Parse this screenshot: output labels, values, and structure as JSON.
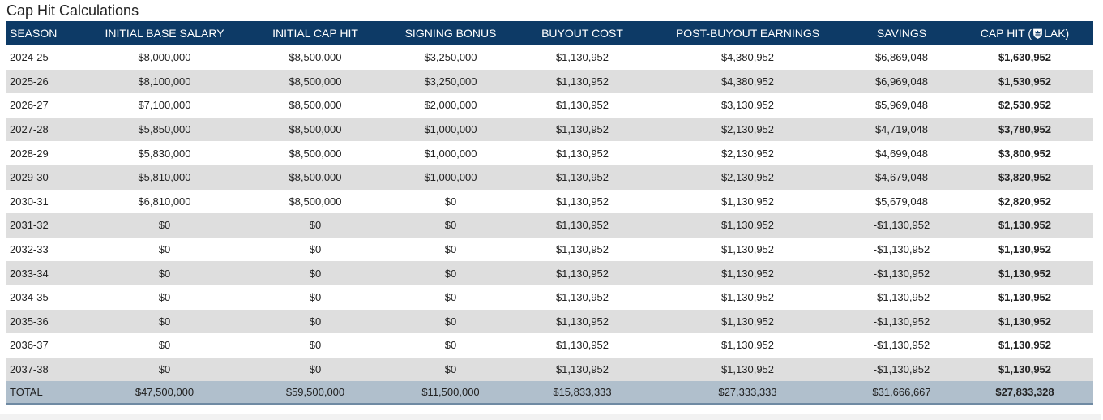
{
  "title": "Cap Hit Calculations",
  "headers": {
    "season": "SEASON",
    "initial_base_salary": "INITIAL BASE SALARY",
    "initial_cap_hit": "INITIAL CAP HIT",
    "signing_bonus": "SIGNING BONUS",
    "buyout_cost": "BUYOUT COST",
    "post_buyout_earnings": "POST-BUYOUT EARNINGS",
    "savings": "SAVINGS",
    "cap_hit_prefix": "CAP HIT (",
    "cap_hit_team": "LAK)",
    "cap_hit_logo_icon": "team-logo-icon"
  },
  "rows": [
    [
      "2024-25",
      "$8,000,000",
      "$8,500,000",
      "$3,250,000",
      "$1,130,952",
      "$4,380,952",
      "$6,869,048",
      "$1,630,952"
    ],
    [
      "2025-26",
      "$8,100,000",
      "$8,500,000",
      "$3,250,000",
      "$1,130,952",
      "$4,380,952",
      "$6,969,048",
      "$1,530,952"
    ],
    [
      "2026-27",
      "$7,100,000",
      "$8,500,000",
      "$2,000,000",
      "$1,130,952",
      "$3,130,952",
      "$5,969,048",
      "$2,530,952"
    ],
    [
      "2027-28",
      "$5,850,000",
      "$8,500,000",
      "$1,000,000",
      "$1,130,952",
      "$2,130,952",
      "$4,719,048",
      "$3,780,952"
    ],
    [
      "2028-29",
      "$5,830,000",
      "$8,500,000",
      "$1,000,000",
      "$1,130,952",
      "$2,130,952",
      "$4,699,048",
      "$3,800,952"
    ],
    [
      "2029-30",
      "$5,810,000",
      "$8,500,000",
      "$1,000,000",
      "$1,130,952",
      "$2,130,952",
      "$4,679,048",
      "$3,820,952"
    ],
    [
      "2030-31",
      "$6,810,000",
      "$8,500,000",
      "$0",
      "$1,130,952",
      "$1,130,952",
      "$5,679,048",
      "$2,820,952"
    ],
    [
      "2031-32",
      "$0",
      "$0",
      "$0",
      "$1,130,952",
      "$1,130,952",
      "-$1,130,952",
      "$1,130,952"
    ],
    [
      "2032-33",
      "$0",
      "$0",
      "$0",
      "$1,130,952",
      "$1,130,952",
      "-$1,130,952",
      "$1,130,952"
    ],
    [
      "2033-34",
      "$0",
      "$0",
      "$0",
      "$1,130,952",
      "$1,130,952",
      "-$1,130,952",
      "$1,130,952"
    ],
    [
      "2034-35",
      "$0",
      "$0",
      "$0",
      "$1,130,952",
      "$1,130,952",
      "-$1,130,952",
      "$1,130,952"
    ],
    [
      "2035-36",
      "$0",
      "$0",
      "$0",
      "$1,130,952",
      "$1,130,952",
      "-$1,130,952",
      "$1,130,952"
    ],
    [
      "2036-37",
      "$0",
      "$0",
      "$0",
      "$1,130,952",
      "$1,130,952",
      "-$1,130,952",
      "$1,130,952"
    ],
    [
      "2037-38",
      "$0",
      "$0",
      "$0",
      "$1,130,952",
      "$1,130,952",
      "-$1,130,952",
      "$1,130,952"
    ]
  ],
  "total": [
    "TOTAL",
    "$47,500,000",
    "$59,500,000",
    "$11,500,000",
    "$15,833,333",
    "$27,333,333",
    "$31,666,667",
    "$27,833,328"
  ],
  "colors": {
    "header_bg": "#0d3a66",
    "stripe_bg": "#dedede",
    "total_bg": "#b0bfcc"
  }
}
